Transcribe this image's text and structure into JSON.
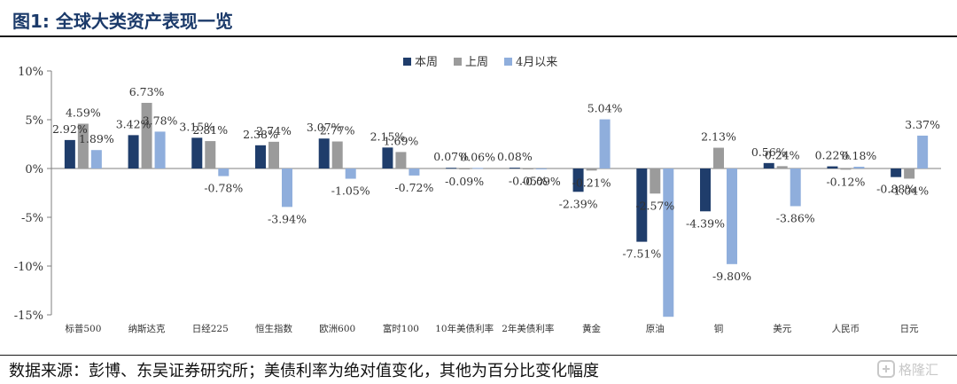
{
  "title": "图1:  全球大类资产表现一览",
  "source": "数据来源：彭博、东吴证券研究所；美债利率为绝对值变化，其他为百分比变化幅度",
  "watermark": "格隆汇",
  "colors": {
    "title": "#1b3a6a",
    "series": [
      "#1f3d6b",
      "#9b9b9b",
      "#8faedc"
    ]
  },
  "chart_data": {
    "type": "bar",
    "categories": [
      "标普500",
      "纳斯达克",
      "日经225",
      "恒生指数",
      "欧洲600",
      "富时100",
      "10年美债利率",
      "2年美债利率",
      "黄金",
      "原油",
      "铜",
      "美元",
      "人民币",
      "日元"
    ],
    "series": [
      {
        "name": "本周",
        "values": [
          2.92,
          3.42,
          3.15,
          2.38,
          3.07,
          2.15,
          0.07,
          0.08,
          -2.39,
          -7.51,
          -4.39,
          0.56,
          0.22,
          -0.88
        ]
      },
      {
        "name": "上周",
        "values": [
          4.59,
          6.73,
          2.81,
          2.74,
          2.77,
          1.69,
          -0.09,
          -0.05,
          -0.21,
          -2.57,
          2.13,
          0.24,
          -0.12,
          -1.04
        ]
      },
      {
        "name": "4月以来",
        "values": [
          1.89,
          3.78,
          -0.78,
          -3.94,
          -1.05,
          -0.72,
          0.06,
          -0.09,
          5.04,
          -15.2,
          -9.8,
          -3.86,
          0.18,
          3.37
        ]
      }
    ],
    "data_labels": [
      [
        "2.92%",
        "3.42%",
        "3.15%",
        "2.38%",
        "3.07%",
        "2.15%",
        "0.07%",
        "0.08%",
        "-2.39%",
        "-7.51%",
        "-4.39%",
        "0.56%",
        "0.22%",
        "-0.88%"
      ],
      [
        "4.59%",
        "6.73%",
        "2.81%",
        "2.74%",
        "2.77%",
        "1.69%",
        "-0.09%",
        "-0.05%",
        "-0.21%",
        "-2.57%",
        "2.13%",
        "0.24%",
        "-0.12%",
        "-1.04%"
      ],
      [
        "1.89%",
        "3.78%",
        "-0.78%",
        "-3.94%",
        "-1.05%",
        "-0.72%",
        "0.06%",
        "-0.09%",
        "5.04%",
        "",
        "-9.80%",
        "-3.86%",
        "0.18%",
        "3.37%"
      ]
    ],
    "ylim": [
      -15,
      10
    ],
    "yticks": [
      10,
      5,
      0,
      -5,
      -10,
      -15
    ],
    "ytick_labels": [
      "10%",
      "5%",
      "0%",
      "-5%",
      "-10%",
      "-15%"
    ],
    "legend_position": "top-center",
    "grid": false
  }
}
